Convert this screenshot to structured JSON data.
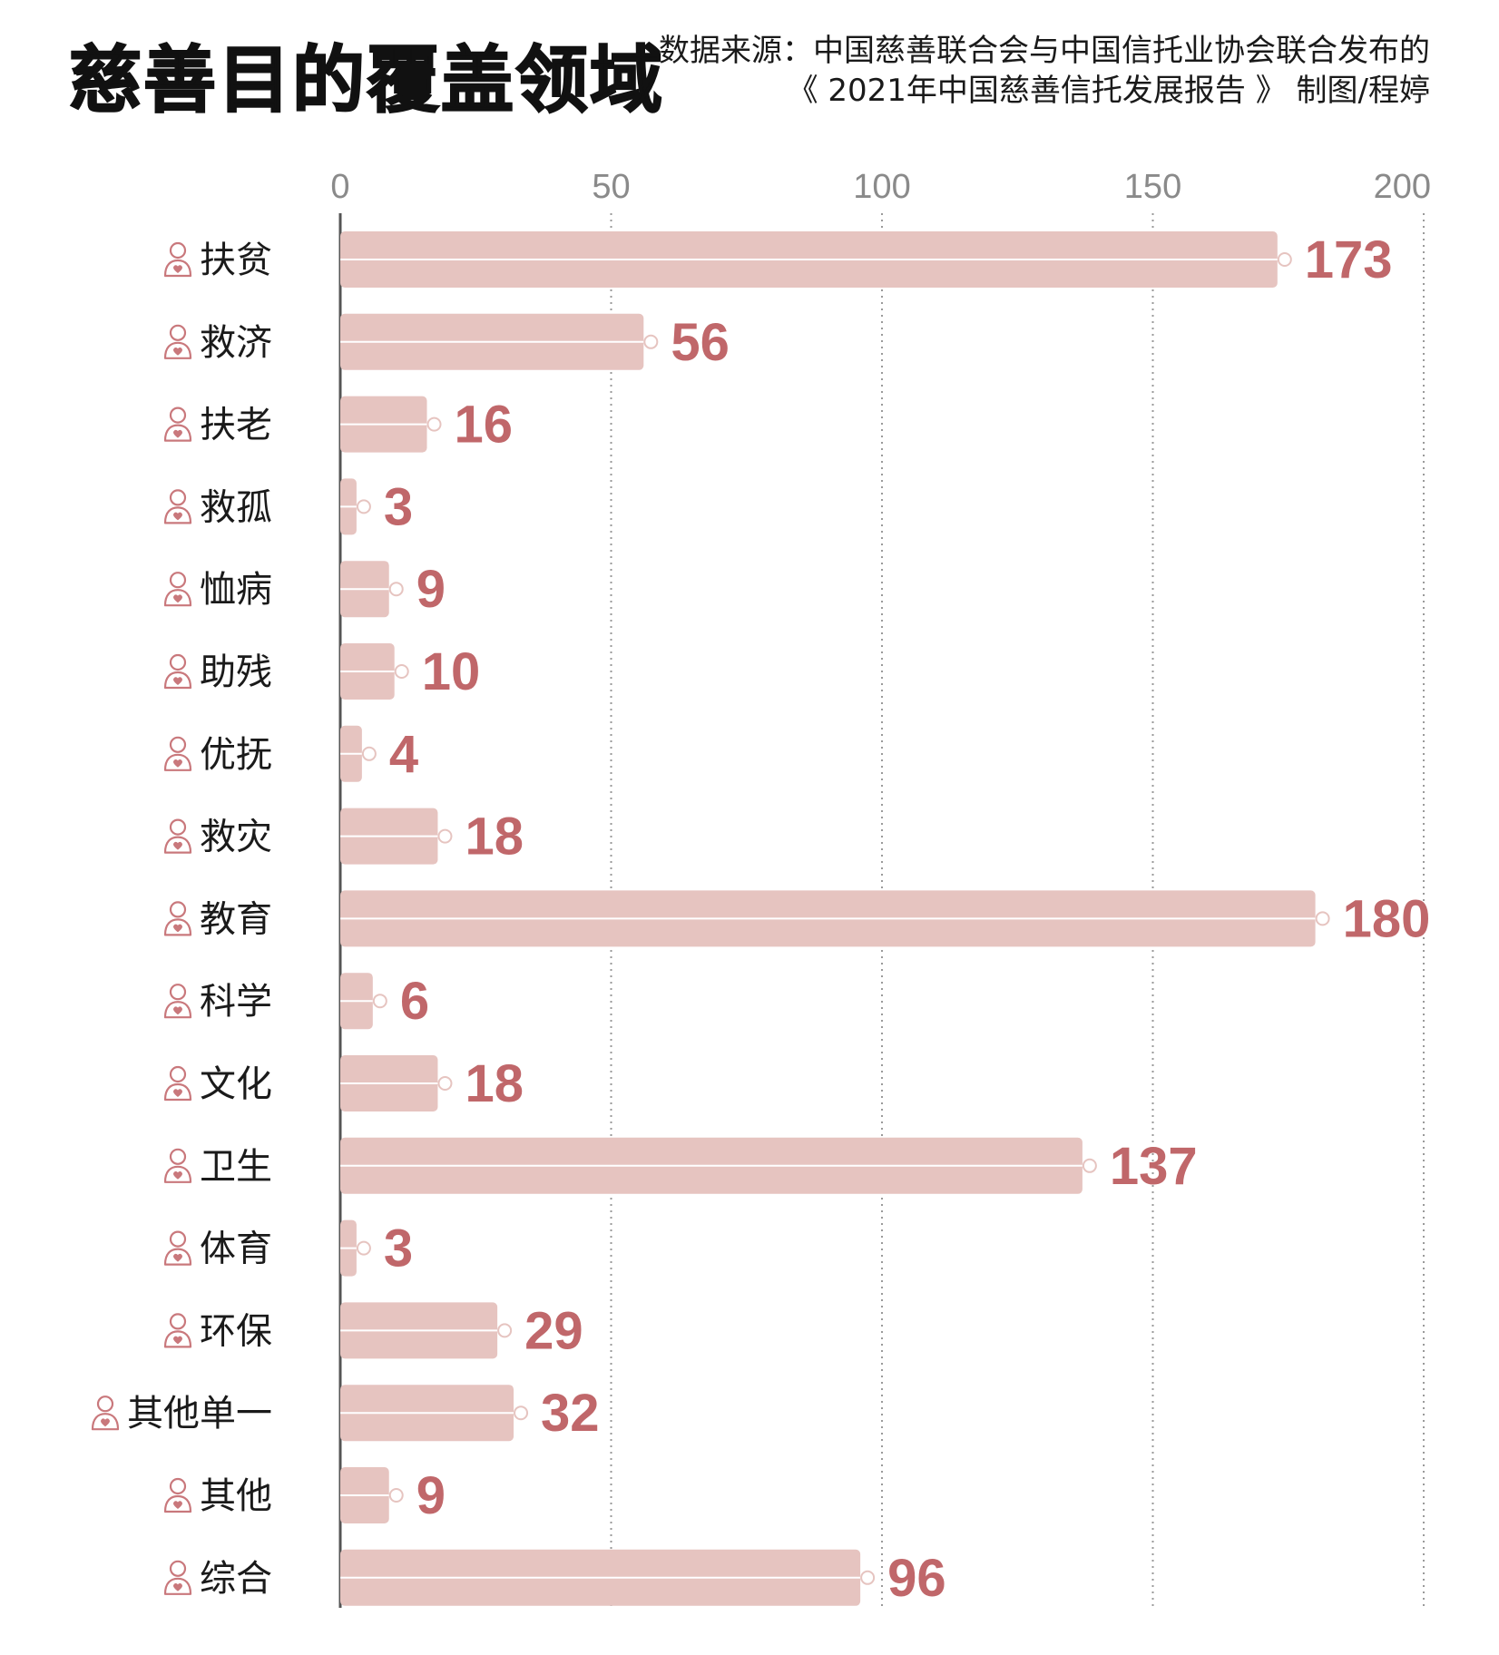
{
  "header": {
    "title": "慈善目的覆盖领域",
    "source_line1": "数据来源：中国慈善联合会与中国信托业协会联合发布的",
    "source_line2": "《 2021年中国慈善信托发展报告 》 制图/程婷"
  },
  "colors": {
    "bar": "#e6c4c0",
    "value_label": "#c0676a",
    "icon": "#c9787c",
    "axis": "#555555",
    "grid": "#9a9a9a"
  },
  "icon_name": "person-heart-icon",
  "chart_data": {
    "type": "bar",
    "orientation": "horizontal",
    "title": "慈善目的覆盖领域",
    "xlim": [
      0,
      200
    ],
    "ticks": [
      0,
      50,
      100,
      150,
      200
    ],
    "grid": "vertical-dotted",
    "categories": [
      "扶贫",
      "救济",
      "扶老",
      "救孤",
      "恤病",
      "助残",
      "优抚",
      "救灾",
      "教育",
      "科学",
      "文化",
      "卫生",
      "体育",
      "环保",
      "其他单一",
      "其他",
      "综合"
    ],
    "values": [
      173,
      56,
      16,
      3,
      9,
      10,
      4,
      18,
      180,
      6,
      18,
      137,
      3,
      29,
      32,
      9,
      96
    ]
  }
}
